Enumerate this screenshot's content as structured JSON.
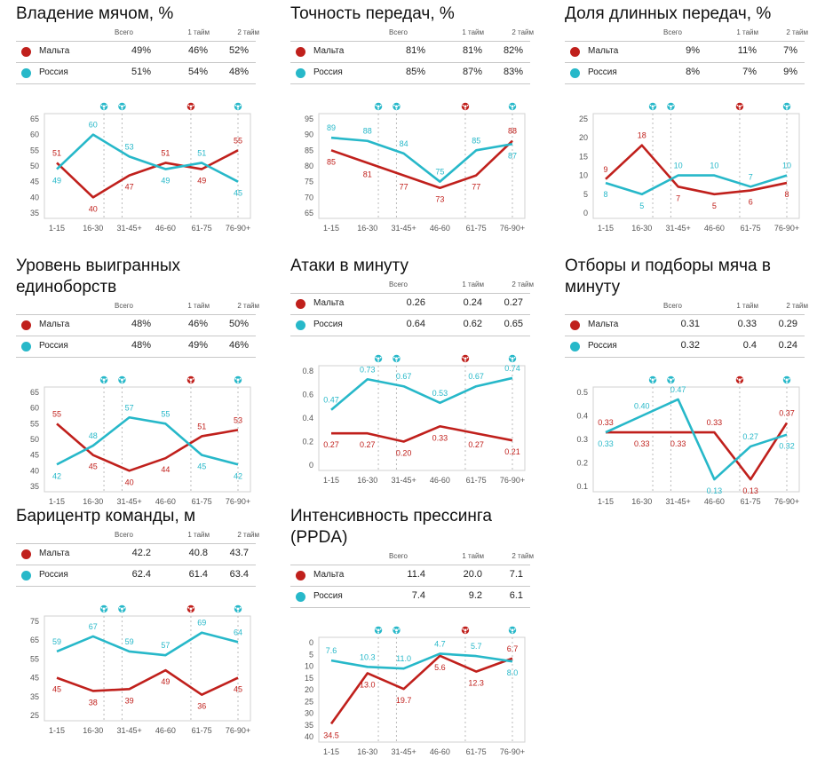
{
  "legend_names": [
    "Мальта",
    "Россия"
  ],
  "columns": [
    "Всего",
    "1 тайм",
    "2 тайм"
  ],
  "x_categories": [
    "1-15",
    "16-30",
    "31-45+",
    "46-60",
    "61-75",
    "76-90+"
  ],
  "colors": {
    "malta": "#c0201c",
    "russia": "#27b8c9",
    "axis": "#999999",
    "grid": "#bbbbbb"
  },
  "goal_icons": [
    {
      "team": "russia",
      "x": 1.3
    },
    {
      "team": "russia",
      "x": 1.8
    },
    {
      "team": "malta",
      "x": 3.7
    },
    {
      "team": "russia",
      "x": 5.0
    }
  ],
  "panels": [
    {
      "title": "Владение мячом, %",
      "table": [
        [
          "49%",
          "46%",
          "52%"
        ],
        [
          "51%",
          "54%",
          "48%"
        ]
      ],
      "chart_data": {
        "type": "line",
        "categories": [
          "1-15",
          "16-30",
          "31-45+",
          "46-60",
          "61-75",
          "76-90+"
        ],
        "ylim": [
          35,
          65
        ],
        "yticks": [
          "35",
          "40",
          "45",
          "50",
          "55",
          "60",
          "65"
        ],
        "ytick_values": [
          35,
          40,
          45,
          50,
          55,
          60,
          65
        ],
        "series": [
          {
            "name": "Мальта",
            "values": [
              51,
              40,
              47,
              51,
              49,
              55
            ],
            "labels": [
              "51",
              "40",
              "47",
              "51",
              "49",
              "55"
            ],
            "label_pos": [
              "above",
              "below",
              "below",
              "above",
              "below",
              "above"
            ]
          },
          {
            "name": "Россия",
            "values": [
              49,
              60,
              53,
              49,
              51,
              45
            ],
            "labels": [
              "49",
              "60",
              "53",
              "49",
              "51",
              "45"
            ],
            "label_pos": [
              "below",
              "above",
              "above",
              "below",
              "above",
              "below"
            ]
          }
        ]
      }
    },
    {
      "title": "Точность передач, %",
      "table": [
        [
          "81%",
          "81%",
          "82%"
        ],
        [
          "85%",
          "87%",
          "83%"
        ]
      ],
      "chart_data": {
        "type": "line",
        "categories": [
          "1-15",
          "16-30",
          "31-45+",
          "46-60",
          "61-75",
          "76-90+"
        ],
        "ylim": [
          65,
          95
        ],
        "yticks": [
          "65",
          "70",
          "75",
          "80",
          "85",
          "90",
          "95"
        ],
        "ytick_values": [
          65,
          70,
          75,
          80,
          85,
          90,
          95
        ],
        "series": [
          {
            "name": "Мальта",
            "values": [
              85,
              81,
              77,
              73,
              77,
              88
            ],
            "labels": [
              "85",
              "81",
              "77",
              "73",
              "77",
              "88"
            ],
            "label_pos": [
              "below",
              "below",
              "below",
              "below",
              "below",
              "above"
            ]
          },
          {
            "name": "Россия",
            "values": [
              89,
              88,
              84,
              75,
              85,
              87
            ],
            "labels": [
              "89",
              "88",
              "84",
              "75",
              "85",
              "87"
            ],
            "label_pos": [
              "above",
              "above",
              "above",
              "above",
              "above",
              "below"
            ]
          }
        ]
      }
    },
    {
      "title": "Доля длинных передач, %",
      "table": [
        [
          "9%",
          "11%",
          "7%"
        ],
        [
          "8%",
          "7%",
          "9%"
        ]
      ],
      "chart_data": {
        "type": "line",
        "categories": [
          "1-15",
          "16-30",
          "31-45+",
          "46-60",
          "61-75",
          "76-90+"
        ],
        "ylim": [
          0,
          25
        ],
        "yticks": [
          "0",
          "5",
          "10",
          "15",
          "20",
          "25"
        ],
        "ytick_values": [
          0,
          5,
          10,
          15,
          20,
          25
        ],
        "series": [
          {
            "name": "Мальта",
            "values": [
              9,
              18,
              7,
              5,
              6,
              8
            ],
            "labels": [
              "9",
              "18",
              "7",
              "5",
              "6",
              "8"
            ],
            "label_pos": [
              "above",
              "above",
              "below",
              "below",
              "below",
              "below"
            ]
          },
          {
            "name": "Россия",
            "values": [
              8,
              5,
              10,
              10,
              7,
              10
            ],
            "labels": [
              "8",
              "5",
              "10",
              "10",
              "7",
              "10"
            ],
            "label_pos": [
              "below",
              "below",
              "above",
              "above",
              "above",
              "above"
            ]
          }
        ]
      }
    },
    {
      "title": "Уровень выигранных единоборств",
      "table": [
        [
          "48%",
          "46%",
          "50%"
        ],
        [
          "48%",
          "49%",
          "46%"
        ]
      ],
      "chart_data": {
        "type": "line",
        "categories": [
          "1-15",
          "16-30",
          "31-45+",
          "46-60",
          "61-75",
          "76-90+"
        ],
        "ylim": [
          35,
          65
        ],
        "yticks": [
          "35",
          "40",
          "45",
          "50",
          "55",
          "60",
          "65"
        ],
        "ytick_values": [
          35,
          40,
          45,
          50,
          55,
          60,
          65
        ],
        "series": [
          {
            "name": "Мальта",
            "values": [
              55,
              45,
              40,
              44,
              51,
              53
            ],
            "labels": [
              "55",
              "45",
              "40",
              "44",
              "51",
              "53"
            ],
            "label_pos": [
              "above",
              "below",
              "below",
              "below",
              "above",
              "above"
            ]
          },
          {
            "name": "Россия",
            "values": [
              42,
              48,
              57,
              55,
              45,
              42
            ],
            "labels": [
              "42",
              "48",
              "57",
              "55",
              "45",
              "42"
            ],
            "label_pos": [
              "below",
              "above",
              "above",
              "above",
              "below",
              "below"
            ]
          }
        ]
      }
    },
    {
      "title": "Атаки в минуту",
      "table": [
        [
          "0.26",
          "0.24",
          "0.27"
        ],
        [
          "0.64",
          "0.62",
          "0.65"
        ]
      ],
      "chart_data": {
        "type": "line",
        "categories": [
          "1-15",
          "16-30",
          "31-45+",
          "46-60",
          "61-75",
          "76-90+"
        ],
        "ylim": [
          0,
          0.8
        ],
        "yticks": [
          "0",
          "0.2",
          "0.4",
          "0.6",
          "0.8"
        ],
        "ytick_values": [
          0,
          0.2,
          0.4,
          0.6,
          0.8
        ],
        "series": [
          {
            "name": "Мальта",
            "values": [
              0.27,
              0.27,
              0.2,
              0.33,
              0.27,
              0.21
            ],
            "labels": [
              "0.27",
              "0.27",
              "0.20",
              "0.33",
              "0.27",
              "0.21"
            ],
            "label_pos": [
              "below",
              "below",
              "below",
              "below",
              "below",
              "below"
            ]
          },
          {
            "name": "Россия",
            "values": [
              0.47,
              0.73,
              0.67,
              0.53,
              0.67,
              0.74
            ],
            "labels": [
              "0.47",
              "0.73",
              "0.67",
              "0.53",
              "0.67",
              "0.74"
            ],
            "label_pos": [
              "above",
              "above",
              "above",
              "above",
              "above",
              "above"
            ]
          }
        ]
      }
    },
    {
      "title": "Отборы и подборы мяча в минуту",
      "table": [
        [
          "0.31",
          "0.33",
          "0.29"
        ],
        [
          "0.32",
          "0.4",
          "0.24"
        ]
      ],
      "chart_data": {
        "type": "line",
        "categories": [
          "1-15",
          "16-30",
          "31-45+",
          "46-60",
          "61-75",
          "76-90+"
        ],
        "ylim": [
          0.1,
          0.5
        ],
        "yticks": [
          "0.1",
          "0.2",
          "0.3",
          "0.4",
          "0.5"
        ],
        "ytick_values": [
          0.1,
          0.2,
          0.3,
          0.4,
          0.5
        ],
        "series": [
          {
            "name": "Мальта",
            "values": [
              0.33,
              0.33,
              0.33,
              0.33,
              0.13,
              0.37
            ],
            "labels": [
              "0.33",
              "0.33",
              "0.33",
              "0.33",
              "0.13",
              "0.37"
            ],
            "label_pos": [
              "above",
              "below",
              "below",
              "above",
              "below",
              "above"
            ]
          },
          {
            "name": "Россия",
            "values": [
              0.33,
              0.4,
              0.47,
              0.13,
              0.27,
              0.32
            ],
            "labels": [
              "0.33",
              "0.40",
              "0.47",
              "0.13",
              "0.27",
              "0.32"
            ],
            "label_pos": [
              "below",
              "above",
              "above",
              "below",
              "above",
              "below"
            ]
          }
        ]
      }
    },
    {
      "title": "Барицентр команды, м",
      "table": [
        [
          "42.2",
          "40.8",
          "43.7"
        ],
        [
          "62.4",
          "61.4",
          "63.4"
        ]
      ],
      "chart_data": {
        "type": "line",
        "categories": [
          "1-15",
          "16-30",
          "31-45+",
          "46-60",
          "61-75",
          "76-90+"
        ],
        "ylim": [
          25,
          75
        ],
        "yticks": [
          "25",
          "35",
          "45",
          "55",
          "65",
          "75"
        ],
        "ytick_values": [
          25,
          35,
          45,
          55,
          65,
          75
        ],
        "series": [
          {
            "name": "Мальта",
            "values": [
              45,
              38,
              39,
              49,
              36,
              45
            ],
            "labels": [
              "45",
              "38",
              "39",
              "49",
              "36",
              "45"
            ],
            "label_pos": [
              "below",
              "below",
              "below",
              "below",
              "below",
              "below"
            ]
          },
          {
            "name": "Россия",
            "values": [
              59,
              67,
              59,
              57,
              69,
              64
            ],
            "labels": [
              "59",
              "67",
              "59",
              "57",
              "69",
              "64"
            ],
            "label_pos": [
              "above",
              "above",
              "above",
              "above",
              "above",
              "above"
            ]
          }
        ]
      }
    },
    {
      "title": "Интенсивность прессинга (PPDA)",
      "table": [
        [
          "11.4",
          "20.0",
          "7.1"
        ],
        [
          "7.4",
          "9.2",
          "6.1"
        ]
      ],
      "chart_data": {
        "type": "line",
        "categories": [
          "1-15",
          "16-30",
          "31-45+",
          "46-60",
          "61-75",
          "76-90+"
        ],
        "ylim": [
          0,
          40
        ],
        "reversed": true,
        "yticks": [
          "0",
          "5",
          "10",
          "15",
          "20",
          "25",
          "30",
          "35",
          "40"
        ],
        "ytick_values": [
          0,
          5,
          10,
          15,
          20,
          25,
          30,
          35,
          40
        ],
        "series": [
          {
            "name": "Мальта",
            "values": [
              34.5,
              13.0,
              19.7,
              5.6,
              12.3,
              6.7
            ],
            "labels": [
              "34.5",
              "13.0",
              "19.7",
              "5.6",
              "12.3",
              "6.7"
            ],
            "label_pos": [
              "below",
              "below",
              "below",
              "below",
              "below",
              "above"
            ]
          },
          {
            "name": "Россия",
            "values": [
              7.6,
              10.3,
              11.0,
              4.7,
              5.7,
              8.0
            ],
            "labels": [
              "7.6",
              "10.3",
              "11.0",
              "4.7",
              "5.7",
              "8.0"
            ],
            "label_pos": [
              "above",
              "above",
              "above",
              "above",
              "above",
              "below"
            ]
          }
        ]
      }
    }
  ]
}
